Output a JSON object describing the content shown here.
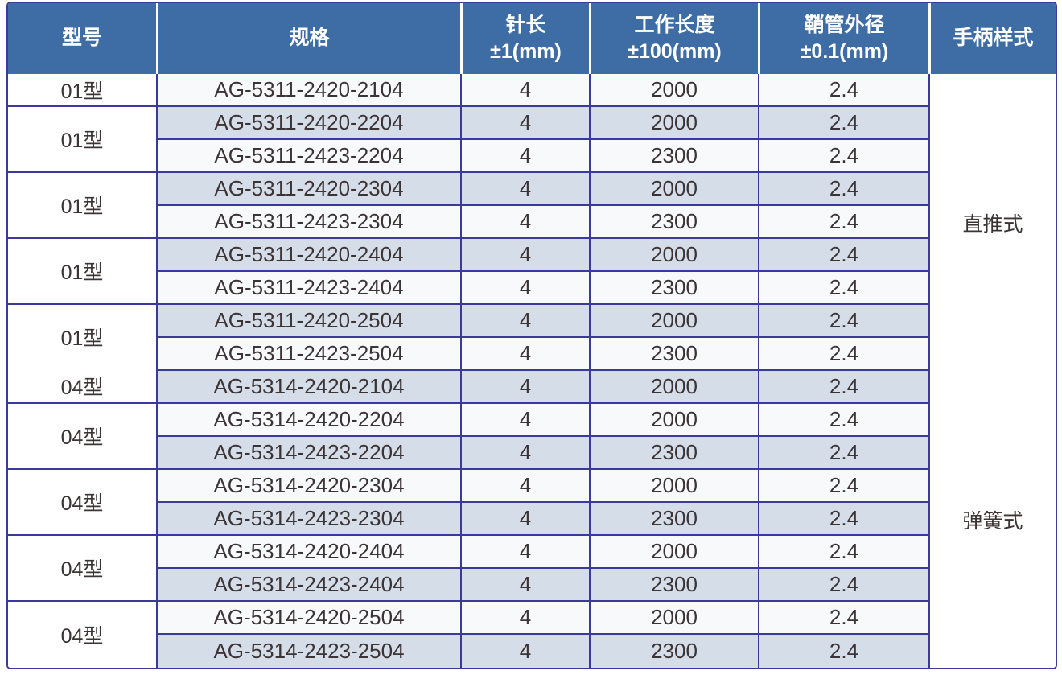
{
  "table": {
    "columns": [
      {
        "label": "型号",
        "sublabel": ""
      },
      {
        "label": "规格",
        "sublabel": ""
      },
      {
        "label": "针长",
        "sublabel": "±1(mm)"
      },
      {
        "label": "工作长度",
        "sublabel": "±100(mm)"
      },
      {
        "label": "鞘管外径",
        "sublabel": "±0.1(mm)"
      },
      {
        "label": "手柄样式",
        "sublabel": ""
      }
    ],
    "rows": [
      {
        "spec": "AG-5311-2420-2104",
        "needle_length": "4",
        "working_length": "2000",
        "sheath_od": "2.4",
        "shaded": false
      },
      {
        "spec": "AG-5311-2420-2204",
        "needle_length": "4",
        "working_length": "2000",
        "sheath_od": "2.4",
        "shaded": true
      },
      {
        "spec": "AG-5311-2423-2204",
        "needle_length": "4",
        "working_length": "2300",
        "sheath_od": "2.4",
        "shaded": false
      },
      {
        "spec": "AG-5311-2420-2304",
        "needle_length": "4",
        "working_length": "2000",
        "sheath_od": "2.4",
        "shaded": true
      },
      {
        "spec": "AG-5311-2423-2304",
        "needle_length": "4",
        "working_length": "2300",
        "sheath_od": "2.4",
        "shaded": false
      },
      {
        "spec": "AG-5311-2420-2404",
        "needle_length": "4",
        "working_length": "2000",
        "sheath_od": "2.4",
        "shaded": true
      },
      {
        "spec": "AG-5311-2423-2404",
        "needle_length": "4",
        "working_length": "2300",
        "sheath_od": "2.4",
        "shaded": false
      },
      {
        "spec": "AG-5311-2420-2504",
        "needle_length": "4",
        "working_length": "2000",
        "sheath_od": "2.4",
        "shaded": true
      },
      {
        "spec": "AG-5311-2423-2504",
        "needle_length": "4",
        "working_length": "2300",
        "sheath_od": "2.4",
        "shaded": false
      },
      {
        "spec": "AG-5314-2420-2104",
        "needle_length": "4",
        "working_length": "2000",
        "sheath_od": "2.4",
        "shaded": true
      },
      {
        "spec": "AG-5314-2420-2204",
        "needle_length": "4",
        "working_length": "2000",
        "sheath_od": "2.4",
        "shaded": false
      },
      {
        "spec": "AG-5314-2423-2204",
        "needle_length": "4",
        "working_length": "2300",
        "sheath_od": "2.4",
        "shaded": true
      },
      {
        "spec": "AG-5314-2420-2304",
        "needle_length": "4",
        "working_length": "2000",
        "sheath_od": "2.4",
        "shaded": false
      },
      {
        "spec": "AG-5314-2423-2304",
        "needle_length": "4",
        "working_length": "2300",
        "sheath_od": "2.4",
        "shaded": true
      },
      {
        "spec": "AG-5314-2420-2404",
        "needle_length": "4",
        "working_length": "2000",
        "sheath_od": "2.4",
        "shaded": false
      },
      {
        "spec": "AG-5314-2423-2404",
        "needle_length": "4",
        "working_length": "2300",
        "sheath_od": "2.4",
        "shaded": true
      },
      {
        "spec": "AG-5314-2420-2504",
        "needle_length": "4",
        "working_length": "2000",
        "sheath_od": "2.4",
        "shaded": false
      },
      {
        "spec": "AG-5314-2423-2504",
        "needle_length": "4",
        "working_length": "2300",
        "sheath_od": "2.4",
        "shaded": true
      }
    ],
    "model_groups": [
      {
        "start": 1,
        "span": 1,
        "labels": [
          {
            "text": "01型",
            "weight": 1
          }
        ]
      },
      {
        "start": 2,
        "span": 2,
        "labels": [
          {
            "text": "01型",
            "weight": 1
          }
        ]
      },
      {
        "start": 4,
        "span": 2,
        "labels": [
          {
            "text": "01型",
            "weight": 1
          }
        ]
      },
      {
        "start": 6,
        "span": 2,
        "labels": [
          {
            "text": "01型",
            "weight": 1
          }
        ]
      },
      {
        "start": 8,
        "span": 3,
        "labels": [
          {
            "text": "01型",
            "weight": 2
          },
          {
            "text": "04型",
            "weight": 1
          }
        ]
      },
      {
        "start": 11,
        "span": 2,
        "labels": [
          {
            "text": "04型",
            "weight": 1
          }
        ]
      },
      {
        "start": 13,
        "span": 2,
        "labels": [
          {
            "text": "04型",
            "weight": 1
          }
        ]
      },
      {
        "start": 15,
        "span": 2,
        "labels": [
          {
            "text": "04型",
            "weight": 1
          }
        ]
      },
      {
        "start": 17,
        "span": 2,
        "labels": [
          {
            "text": "04型",
            "weight": 1
          }
        ]
      }
    ],
    "handle_styles": [
      {
        "label": "直推式",
        "start": 1,
        "span": 9
      },
      {
        "label": "弹簧式",
        "start": 10,
        "span": 9
      }
    ]
  },
  "colors": {
    "header_bg": "#3e6da6",
    "header_text": "#ffffff",
    "border": "#3b3a9c",
    "row_base": "#f8f9fb",
    "row_alt": "#d5dde9",
    "side_bg": "#ffffff",
    "body_text": "#3c3434"
  }
}
